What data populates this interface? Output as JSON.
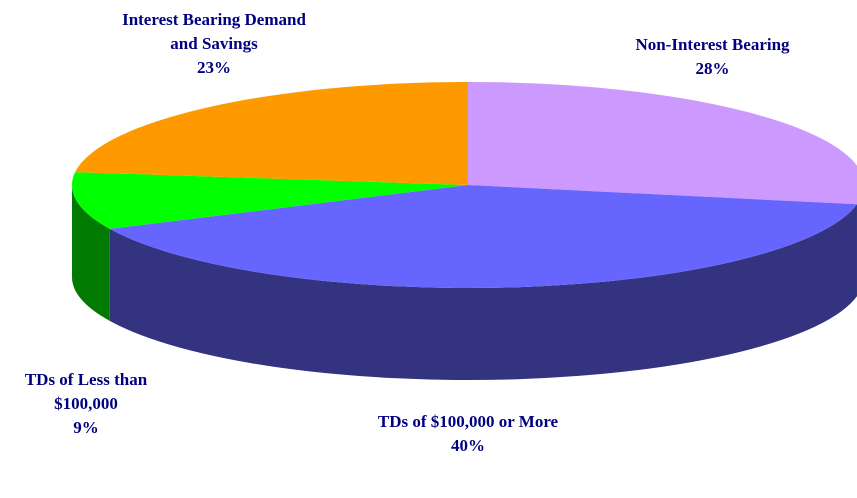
{
  "chart_data": {
    "type": "pie3d",
    "categories": [
      "Non-Interest Bearing",
      "TDs of $100,000 or More",
      "TDs of Less than $100,000",
      "Interest Bearing Demand and Savings"
    ],
    "values": [
      28,
      40,
      9,
      23
    ],
    "value_labels": [
      "28%",
      "40%",
      "9%",
      "23%"
    ],
    "colors": [
      "#cc99ff",
      "#6666ff",
      "#00ff00",
      "#ff9900"
    ],
    "side_colors": [
      "#9370c0",
      "#333380",
      "#007a00",
      "#b36b00"
    ]
  }
}
